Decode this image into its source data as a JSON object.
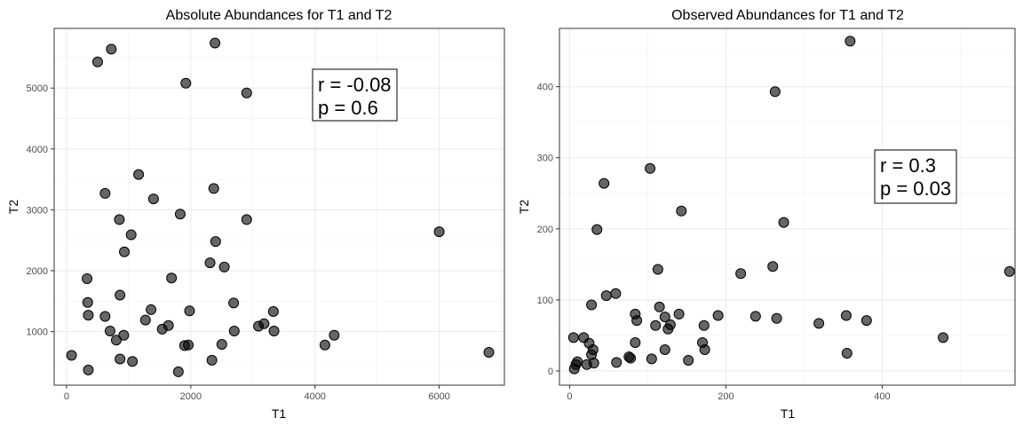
{
  "chart_data": [
    {
      "type": "scatter",
      "title": "Absolute Abundances for T1 and T2",
      "xlabel": "T1",
      "ylabel": "T2",
      "xlim": [
        -200,
        7050
      ],
      "ylim": [
        120,
        5980
      ],
      "xticks": [
        0,
        2000,
        4000,
        6000
      ],
      "yticks": [
        1000,
        2000,
        3000,
        4000,
        5000
      ],
      "grid": true,
      "annotation": {
        "lines": [
          "r = -0.08",
          "p = 0.6"
        ],
        "position": "upper-right"
      },
      "point_color": "#000000",
      "points": [
        [
          80,
          610
        ],
        [
          330,
          1870
        ],
        [
          340,
          1480
        ],
        [
          350,
          1270
        ],
        [
          350,
          370
        ],
        [
          500,
          5430
        ],
        [
          620,
          1250
        ],
        [
          620,
          3270
        ],
        [
          720,
          5640
        ],
        [
          700,
          1010
        ],
        [
          800,
          860
        ],
        [
          850,
          2840
        ],
        [
          860,
          550
        ],
        [
          860,
          1600
        ],
        [
          920,
          940
        ],
        [
          930,
          2310
        ],
        [
          1040,
          2590
        ],
        [
          1060,
          510
        ],
        [
          1160,
          3580
        ],
        [
          1270,
          1190
        ],
        [
          1360,
          1360
        ],
        [
          1400,
          3180
        ],
        [
          1540,
          1040
        ],
        [
          1640,
          1100
        ],
        [
          1690,
          1880
        ],
        [
          1800,
          340
        ],
        [
          1830,
          2930
        ],
        [
          1900,
          770
        ],
        [
          1920,
          5080
        ],
        [
          1960,
          780
        ],
        [
          1980,
          1340
        ],
        [
          2310,
          2130
        ],
        [
          2340,
          530
        ],
        [
          2370,
          3350
        ],
        [
          2390,
          5740
        ],
        [
          2400,
          2480
        ],
        [
          2500,
          790
        ],
        [
          2540,
          2060
        ],
        [
          2690,
          1470
        ],
        [
          2700,
          1010
        ],
        [
          2900,
          4920
        ],
        [
          2900,
          2840
        ],
        [
          3090,
          1090
        ],
        [
          3180,
          1130
        ],
        [
          3330,
          1330
        ],
        [
          3340,
          1010
        ],
        [
          4160,
          780
        ],
        [
          4310,
          940
        ],
        [
          6000,
          2640
        ],
        [
          6800,
          660
        ]
      ]
    },
    {
      "type": "scatter",
      "title": "Observed Abundances for T1 and T2",
      "xlabel": "T1",
      "ylabel": "T2",
      "xlim": [
        -13,
        570
      ],
      "ylim": [
        -20,
        482
      ],
      "xticks": [
        0,
        200,
        400
      ],
      "yticks": [
        0,
        100,
        200,
        300,
        400
      ],
      "grid": true,
      "annotation": {
        "lines": [
          "r = 0.3",
          "p = 0.03"
        ],
        "position": "right"
      },
      "point_color": "#000000",
      "points": [
        [
          5,
          47
        ],
        [
          6,
          3
        ],
        [
          8,
          9
        ],
        [
          10,
          13
        ],
        [
          18,
          47
        ],
        [
          22,
          9
        ],
        [
          25,
          39
        ],
        [
          28,
          23
        ],
        [
          28,
          93
        ],
        [
          30,
          30
        ],
        [
          31,
          11
        ],
        [
          35,
          199
        ],
        [
          44,
          264
        ],
        [
          47,
          106
        ],
        [
          59,
          109
        ],
        [
          60,
          12
        ],
        [
          76,
          20
        ],
        [
          78,
          18
        ],
        [
          84,
          80
        ],
        [
          84,
          40
        ],
        [
          86,
          71
        ],
        [
          103,
          285
        ],
        [
          105,
          17
        ],
        [
          110,
          64
        ],
        [
          113,
          143
        ],
        [
          115,
          90
        ],
        [
          122,
          30
        ],
        [
          122,
          76
        ],
        [
          126,
          59
        ],
        [
          129,
          65
        ],
        [
          140,
          80
        ],
        [
          143,
          225
        ],
        [
          152,
          15
        ],
        [
          170,
          40
        ],
        [
          172,
          64
        ],
        [
          173,
          30
        ],
        [
          190,
          78
        ],
        [
          219,
          137
        ],
        [
          238,
          77
        ],
        [
          260,
          147
        ],
        [
          263,
          393
        ],
        [
          265,
          74
        ],
        [
          274,
          209
        ],
        [
          319,
          67
        ],
        [
          354,
          78
        ],
        [
          355,
          25
        ],
        [
          359,
          464
        ],
        [
          380,
          71
        ],
        [
          478,
          47
        ],
        [
          563,
          140
        ]
      ]
    }
  ]
}
